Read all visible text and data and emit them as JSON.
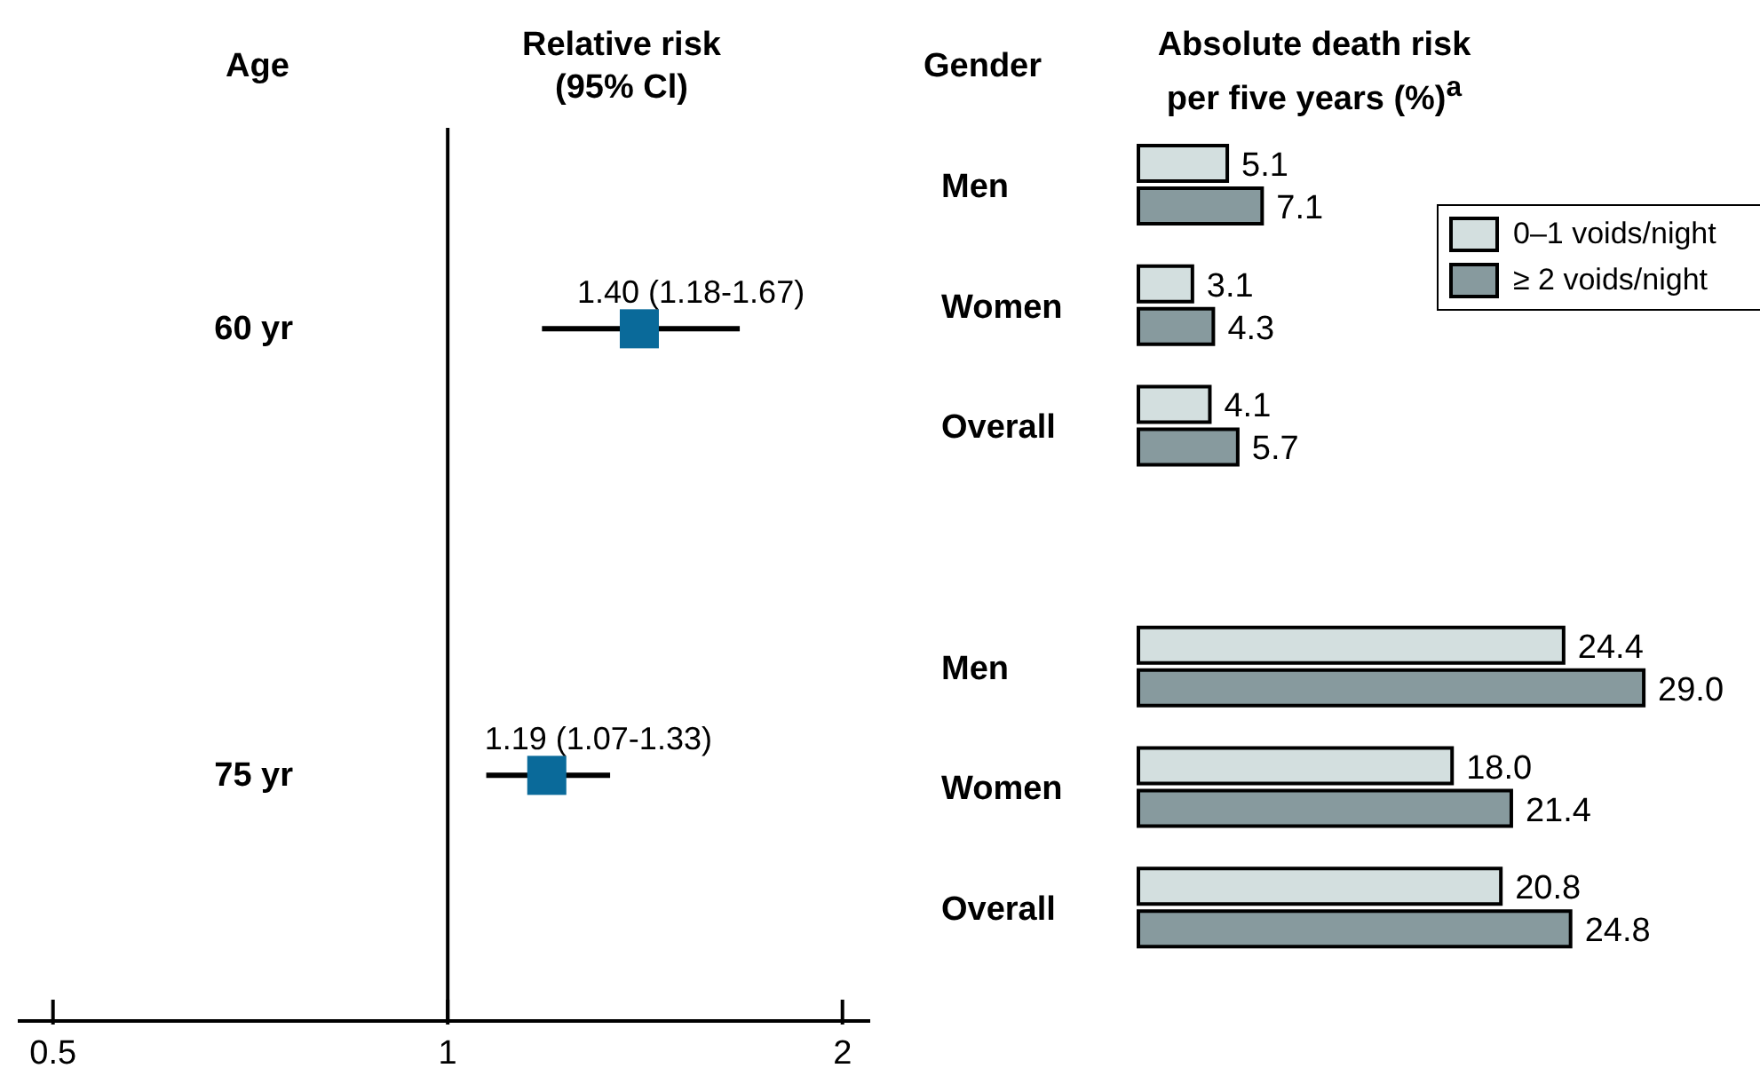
{
  "chart_data": [
    {
      "type": "scatter",
      "orientation": "horizontal",
      "title": "Relative risk (95% Cl)",
      "ylabel": "Age",
      "categories": [
        "60 yr",
        "75 yr"
      ],
      "values": [
        1.4,
        1.19
      ],
      "errors": [
        [
          1.18,
          1.67
        ],
        [
          1.07,
          1.33
        ]
      ],
      "value_labels": [
        "1.40 (1.18-1.67)",
        "1.19 (1.07-1.33)"
      ],
      "color": "#0a6a9a",
      "marker": "square",
      "log": "x",
      "xlim": [
        0.47,
        2.1
      ],
      "xticks": [
        0.5,
        1,
        2
      ],
      "ref_lines": [
        {
          "axis": "x",
          "value": 1
        }
      ],
      "grid": false
    },
    {
      "type": "bar",
      "orientation": "horizontal",
      "title": "Absolute death risk per five years (%)$^{a}$",
      "ylabel": "Gender",
      "categories": [
        "Men",
        "Women",
        "Overall",
        null,
        "Men",
        "Women",
        "Overall"
      ],
      "series": [
        {
          "name": "0–1 voids/night",
          "color": "#d3dfdf",
          "values": [
            5.1,
            3.1,
            4.1,
            null,
            24.4,
            18.0,
            20.8
          ],
          "value_labels": [
            "5.1",
            "3.1",
            "4.1",
            null,
            "24.4",
            "18.0",
            "20.8"
          ]
        },
        {
          "name": "≥ 2 voids/night",
          "color": "#879a9e",
          "values": [
            7.1,
            4.3,
            5.7,
            null,
            29.0,
            21.4,
            24.8
          ],
          "value_labels": [
            "7.1",
            "4.3",
            "5.7",
            null,
            "29.0",
            "21.4",
            "24.8"
          ]
        }
      ],
      "legend": "top right",
      "grid": false
    }
  ]
}
